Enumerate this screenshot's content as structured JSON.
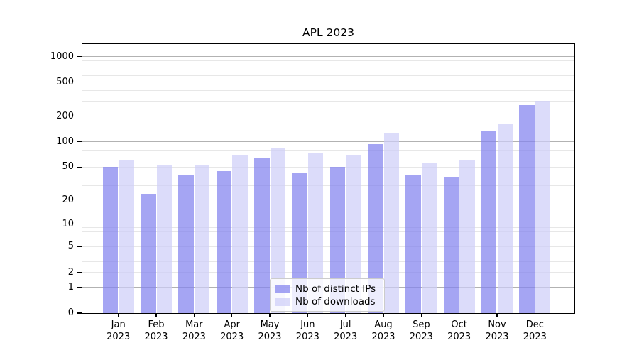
{
  "chart": {
    "title": "APL 2023"
  },
  "legend": {
    "items": [
      {
        "label": "Nb of distinct IPs"
      },
      {
        "label": "Nb of downloads"
      }
    ]
  },
  "chart_data": {
    "type": "bar",
    "title": "APL 2023",
    "categories": [
      "Jan 2023",
      "Feb 2023",
      "Mar 2023",
      "Apr 2023",
      "May 2023",
      "Jun 2023",
      "Jul 2023",
      "Aug 2023",
      "Sep 2023",
      "Oct 2023",
      "Nov 2023",
      "Dec 2023"
    ],
    "series": [
      {
        "name": "Nb of distinct IPs",
        "values": [
          50,
          24,
          40,
          45,
          64,
          43,
          50,
          94,
          40,
          38,
          135,
          272
        ]
      },
      {
        "name": "Nb of downloads",
        "values": [
          61,
          53,
          52,
          69,
          83,
          73,
          70,
          126,
          55,
          60,
          165,
          305
        ]
      }
    ],
    "series_colors": [
      "rgba(130,130,238,0.72)",
      "rgba(205,205,248,0.70)"
    ],
    "yscale": "log1p",
    "ylim": [
      0,
      1400
    ],
    "y_ticks": [
      "0",
      "1",
      "2",
      "5",
      "10",
      "20",
      "50",
      "100",
      "200",
      "500",
      "1000"
    ],
    "grid": "both",
    "grid_major_color": "#b2b2b2",
    "grid_minor_color": "#e7e7e7",
    "legend_position": "lower center",
    "xlabel": "",
    "ylabel": ""
  }
}
